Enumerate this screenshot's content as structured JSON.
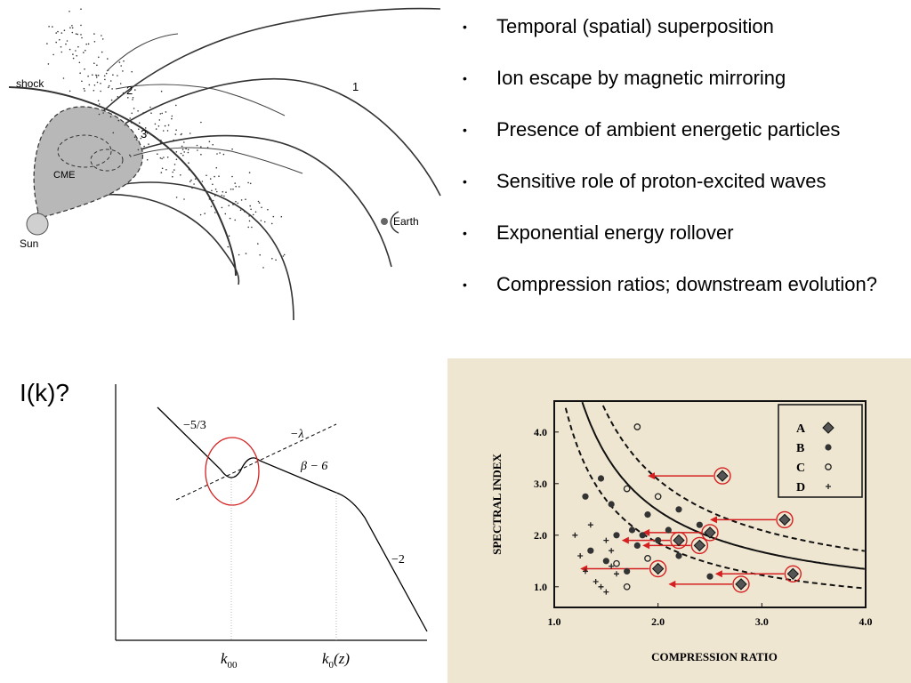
{
  "bullets": [
    "Temporal (spatial) superposition",
    "Ion escape by magnetic mirroring",
    "Presence of ambient energetic particles",
    "Sensitive role of proton-excited waves",
    "Exponential energy rollover",
    "Compression ratios; downstream evolution?"
  ],
  "bullet_marker": "•",
  "cme_diagram": {
    "shock": "shock",
    "cme": "CME",
    "sun": "Sun",
    "earth": "Earth",
    "region_1": "1",
    "region_2": "2",
    "region_3": "3"
  },
  "spectrum_diagram": {
    "title": "I(k)?",
    "slope_kolmogorov": "−5/3",
    "slope_lambda": "−λ",
    "slope_beta": "β − 6",
    "slope_minus2": "−2",
    "k00": "k",
    "k00_sub": "00",
    "k0": "k",
    "k0_sub": "0",
    "k0_arg": "(z)"
  },
  "chart_data": {
    "type": "scatter",
    "xlabel": "COMPRESSION RATIO",
    "ylabel": "SPECTRAL INDEX",
    "xlim": [
      1.0,
      4.0
    ],
    "ylim": [
      0.6,
      4.6
    ],
    "x_ticks": [
      "1.0",
      "2.0",
      "3.0",
      "4.0"
    ],
    "y_ticks": [
      "1.0",
      "2.0",
      "3.0",
      "4.0"
    ],
    "legend": [
      {
        "label": "A",
        "marker": "diamond"
      },
      {
        "label": "B",
        "marker": "dot"
      },
      {
        "label": "C",
        "marker": "circle"
      },
      {
        "label": "D",
        "marker": "plus"
      }
    ],
    "series": [
      {
        "name": "A",
        "points": [
          [
            2.62,
            3.15
          ],
          [
            3.22,
            2.3
          ],
          [
            2.5,
            2.05
          ],
          [
            2.2,
            1.9
          ],
          [
            2.4,
            1.8
          ],
          [
            2.0,
            1.35
          ],
          [
            2.8,
            1.05
          ],
          [
            3.3,
            1.25
          ]
        ]
      },
      {
        "name": "B",
        "points": [
          [
            1.3,
            2.75
          ],
          [
            1.45,
            3.1
          ],
          [
            1.55,
            2.6
          ],
          [
            1.6,
            2.0
          ],
          [
            1.75,
            2.1
          ],
          [
            1.8,
            1.8
          ],
          [
            1.9,
            2.4
          ],
          [
            2.1,
            2.1
          ],
          [
            2.2,
            2.5
          ],
          [
            2.4,
            2.2
          ],
          [
            1.35,
            1.7
          ],
          [
            1.5,
            1.5
          ],
          [
            1.7,
            1.3
          ],
          [
            2.0,
            1.9
          ],
          [
            2.2,
            1.6
          ],
          [
            2.5,
            1.2
          ],
          [
            1.85,
            2.0
          ]
        ]
      },
      {
        "name": "C",
        "points": [
          [
            1.8,
            4.1
          ],
          [
            1.7,
            2.9
          ],
          [
            2.0,
            2.75
          ],
          [
            1.9,
            1.55
          ],
          [
            1.7,
            1.0
          ],
          [
            1.6,
            1.45
          ]
        ]
      },
      {
        "name": "D",
        "points": [
          [
            1.2,
            2.0
          ],
          [
            1.25,
            1.6
          ],
          [
            1.3,
            1.3
          ],
          [
            1.5,
            1.9
          ],
          [
            1.55,
            1.7
          ],
          [
            1.55,
            1.4
          ],
          [
            1.6,
            1.25
          ],
          [
            1.4,
            1.1
          ],
          [
            1.5,
            0.9
          ],
          [
            1.35,
            2.2
          ],
          [
            1.45,
            1.0
          ]
        ]
      }
    ],
    "arrows": [
      {
        "from": [
          2.62,
          3.15
        ],
        "to": [
          1.9,
          3.15
        ]
      },
      {
        "from": [
          3.22,
          2.3
        ],
        "to": [
          2.5,
          2.3
        ]
      },
      {
        "from": [
          2.5,
          2.05
        ],
        "to": [
          1.85,
          2.05
        ]
      },
      {
        "from": [
          2.2,
          1.9
        ],
        "to": [
          1.65,
          1.9
        ]
      },
      {
        "from": [
          2.4,
          1.8
        ],
        "to": [
          1.85,
          1.8
        ]
      },
      {
        "from": [
          2.0,
          1.35
        ],
        "to": [
          1.25,
          1.35
        ]
      },
      {
        "from": [
          2.8,
          1.05
        ],
        "to": [
          2.1,
          1.05
        ]
      },
      {
        "from": [
          3.3,
          1.25
        ],
        "to": [
          2.55,
          1.25
        ]
      }
    ]
  },
  "colors": {
    "highlight": "#d42020",
    "paper": "#efe6d2",
    "cme_fill": "#b8b8b8"
  }
}
